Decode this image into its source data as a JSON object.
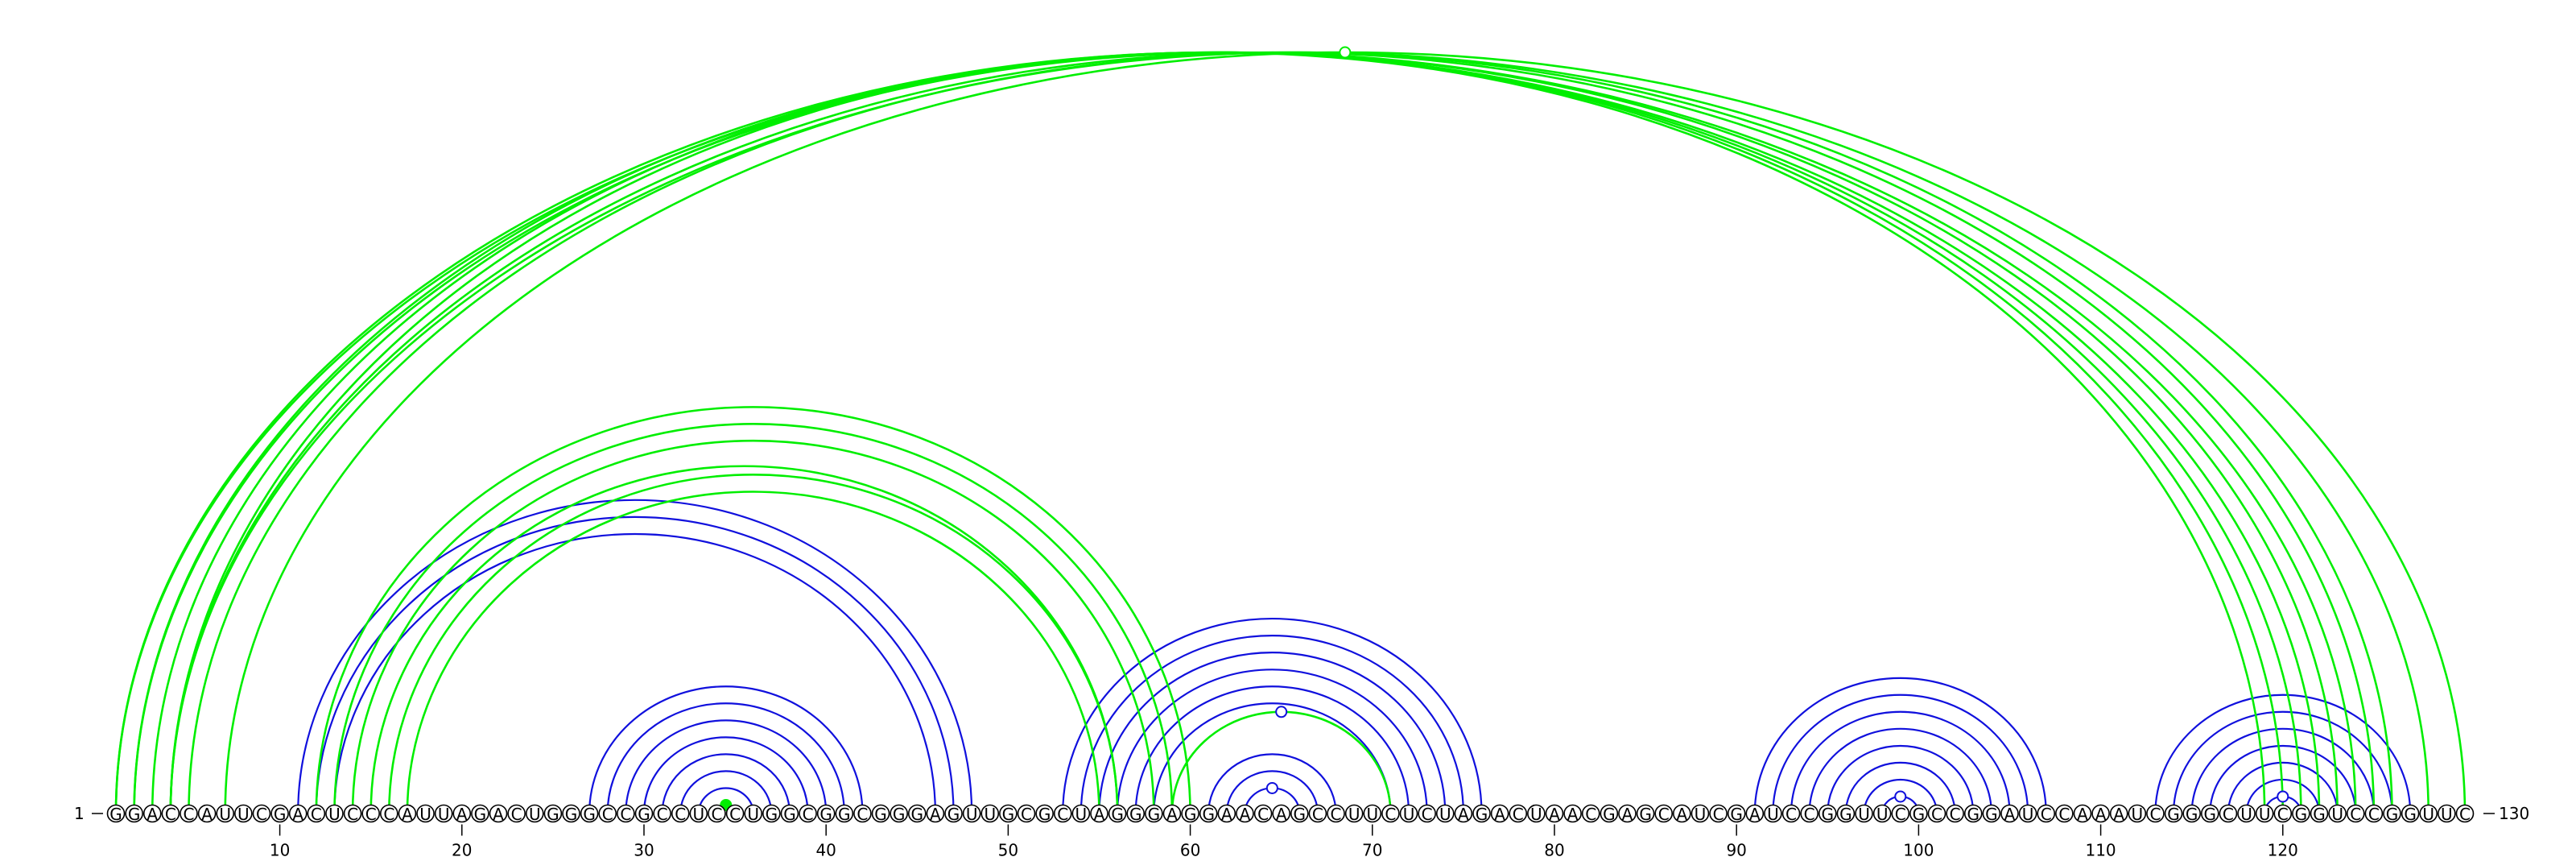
{
  "sequence": "GGACCAUUCGACUCCCAUUAGACUGGGCCGCCUCCUGGCGGCGGGAGUUGCGCUAGGGAGGAACAGCCUUCUCUAGACUAACGAGCAUCGAUCCGGUUCGCCGGAUCCAAAUCGGGCUUCGGUCCGGUUC",
  "start_label": "1",
  "end_label": "130",
  "ticks": [
    10,
    20,
    30,
    40,
    50,
    60,
    70,
    80,
    90,
    100,
    110,
    120
  ],
  "colors": {
    "pair_blue": "#1010dd",
    "pair_green": "#00ee00"
  },
  "arc_groups": [
    {
      "color": "blue",
      "stem": [
        [
          11,
          48
        ],
        [
          12,
          47
        ],
        [
          13,
          46
        ]
      ]
    },
    {
      "color": "blue",
      "stem": [
        [
          27,
          42
        ],
        [
          28,
          41
        ],
        [
          29,
          40
        ],
        [
          30,
          39
        ],
        [
          31,
          38
        ],
        [
          32,
          37
        ],
        [
          33,
          36
        ]
      ]
    },
    {
      "color": "green",
      "stem": [
        [
          34,
          35
        ]
      ],
      "marker": "filled"
    },
    {
      "color": "blue",
      "stem": [
        [
          53,
          76
        ],
        [
          54,
          75
        ],
        [
          55,
          74
        ],
        [
          56,
          73
        ],
        [
          57,
          72
        ],
        [
          58,
          71
        ]
      ]
    },
    {
      "color": "blue",
      "stem": [
        [
          61,
          68
        ],
        [
          62,
          67
        ],
        [
          63,
          66
        ]
      ],
      "marker": "open"
    },
    {
      "color": "green",
      "stem": [
        [
          59,
          71
        ]
      ],
      "marker": "open-blue"
    },
    {
      "color": "blue",
      "stem": [
        [
          91,
          107
        ],
        [
          92,
          106
        ],
        [
          93,
          105
        ],
        [
          94,
          104
        ],
        [
          95,
          103
        ],
        [
          96,
          102
        ],
        [
          97,
          101
        ],
        [
          98,
          100
        ]
      ],
      "marker": "open"
    },
    {
      "color": "blue",
      "stem": [
        [
          113,
          127
        ],
        [
          114,
          126
        ],
        [
          115,
          125
        ],
        [
          116,
          124
        ],
        [
          117,
          123
        ],
        [
          118,
          122
        ],
        [
          119,
          121
        ]
      ],
      "marker": "open"
    },
    {
      "color": "green",
      "stem": [
        [
          1,
          122
        ],
        [
          2,
          121
        ],
        [
          3,
          120
        ],
        [
          4,
          119
        ]
      ]
    },
    {
      "color": "green",
      "stem": [
        [
          1,
          124
        ],
        [
          2,
          123
        ],
        [
          4,
          125
        ],
        [
          5,
          126
        ]
      ]
    },
    {
      "color": "green",
      "stem": [
        [
          4,
          128
        ],
        [
          7,
          130
        ]
      ],
      "marker": "open"
    },
    {
      "color": "green",
      "stem": [
        [
          12,
          60
        ],
        [
          13,
          59
        ],
        [
          14,
          58
        ],
        [
          15,
          56
        ]
      ]
    },
    {
      "color": "green",
      "stem": [
        [
          16,
          56
        ],
        [
          17,
          55
        ]
      ]
    }
  ]
}
